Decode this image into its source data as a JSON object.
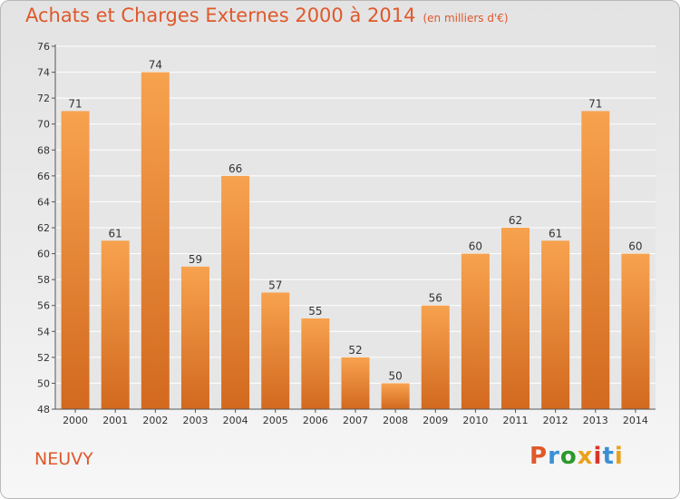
{
  "header": {
    "title": "Achats et Charges Externes 2000 à 2014",
    "subtitle": "(en milliers d'€)"
  },
  "place": "NEUVY",
  "logo": {
    "text": "Proxiti",
    "colors": [
      "#e0582b",
      "#3b8fd6",
      "#2a9a2a",
      "#e8a21c",
      "#d9342b",
      "#3b8fd6",
      "#e8a21c"
    ]
  },
  "colors": {
    "accent": "#e0582b",
    "bar_top": "#f7a24f",
    "bar_bottom": "#d2691e",
    "grid": "#ffffff",
    "axis": "#555555"
  },
  "chart_data": {
    "type": "bar",
    "categories": [
      "2000",
      "2001",
      "2002",
      "2003",
      "2004",
      "2005",
      "2006",
      "2007",
      "2008",
      "2009",
      "2010",
      "2011",
      "2012",
      "2013",
      "2014"
    ],
    "values": [
      71,
      61,
      74,
      59,
      66,
      57,
      55,
      52,
      50,
      56,
      60,
      62,
      61,
      71,
      60
    ],
    "title": "Achats et Charges Externes 2000 à 2014",
    "subtitle": "(en milliers d'€)",
    "ylim": [
      48,
      76
    ],
    "yticks": [
      48,
      50,
      52,
      54,
      56,
      58,
      60,
      62,
      64,
      66,
      68,
      70,
      72,
      74,
      76
    ],
    "grid": true,
    "data_labels": true
  }
}
